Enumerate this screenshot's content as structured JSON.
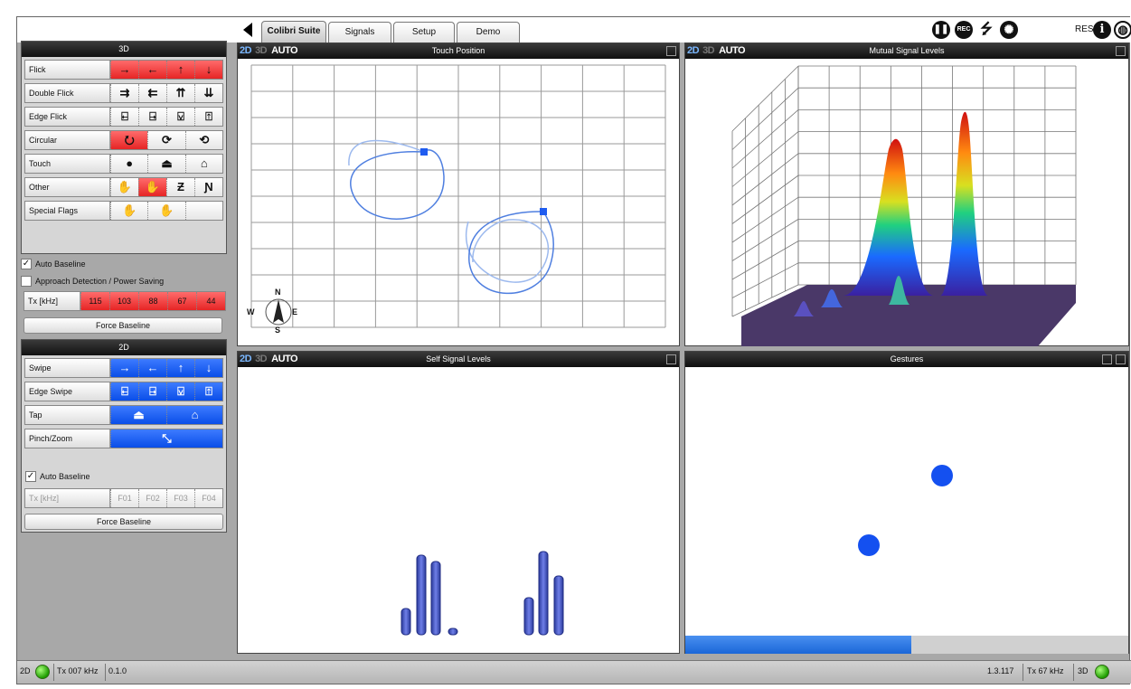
{
  "tabs": [
    "Colibri Suite",
    "Signals",
    "Setup",
    "Demo"
  ],
  "toolbar": {
    "pause_icon": "pause-icon",
    "rec_label": "REC",
    "usb_icon": "usb-icon",
    "settings_icon": "gear-icon",
    "reset_label": "RESET",
    "info_label": "i",
    "globe_icon": "globe-icon"
  },
  "panel3d": {
    "title": "3D",
    "rows": [
      {
        "label": "Flick",
        "cells": [
          "→",
          "←",
          "↑",
          "↓"
        ],
        "style": "red"
      },
      {
        "label": "Double Flick",
        "cells": [
          "⇉",
          "⇇",
          "⇈",
          "⇊"
        ]
      },
      {
        "label": "Edge Flick",
        "cells": [
          "⍇",
          "⍈",
          "⍌",
          "⍐"
        ]
      },
      {
        "label": "Circular",
        "cells": [
          "⭮",
          "⟳",
          "⟲"
        ],
        "active": [
          0
        ]
      },
      {
        "label": "Touch",
        "cells": [
          "●",
          "⏏",
          "⌂"
        ]
      },
      {
        "label": "Other",
        "cells": [
          "✋",
          "✋",
          "Ƶ",
          "Ɲ"
        ],
        "active": [
          1
        ]
      },
      {
        "label": "Special Flags",
        "cells": [
          "✋",
          "✋",
          " "
        ]
      }
    ],
    "auto_baseline": "Auto Baseline",
    "approach": "Approach Detection / Power Saving",
    "tx_label": "Tx [kHz]",
    "tx_values": [
      "115",
      "103",
      "88",
      "67",
      "44"
    ],
    "force_baseline": "Force Baseline"
  },
  "panel2d": {
    "title": "2D",
    "rows": [
      {
        "label": "Swipe",
        "cells": [
          "→",
          "←",
          "↑",
          "↓"
        ]
      },
      {
        "label": "Edge Swipe",
        "cells": [
          "⍇",
          "⍈",
          "⍌",
          "⍐"
        ]
      },
      {
        "label": "Tap",
        "cells": [
          "⏏",
          "⌂"
        ]
      },
      {
        "label": "Pinch/Zoom",
        "cells": [
          "⤡"
        ]
      }
    ],
    "auto_baseline": "Auto Baseline",
    "tx_label": "Tx [kHz]",
    "tx_values": [
      "F01",
      "F02",
      "F03",
      "F04"
    ],
    "force_baseline": "Force Baseline"
  },
  "views": {
    "touch": {
      "title": "Touch Position",
      "modes": [
        "2D",
        "3D",
        "AUTO"
      ],
      "compass": {
        "n": "N",
        "s": "S",
        "e": "E",
        "w": "W"
      }
    },
    "mutual": {
      "title": "Mutual Signal Levels",
      "modes": [
        "2D",
        "3D",
        "AUTO"
      ]
    },
    "self": {
      "title": "Self Signal Levels",
      "modes": [
        "2D",
        "3D",
        "AUTO"
      ],
      "bars": [
        0.29,
        0.88,
        0.81,
        0.07,
        0.41,
        0.92,
        0.65
      ]
    },
    "gestures": {
      "title": "Gestures",
      "progress": 0.51
    }
  },
  "statusbar": {
    "left_mode": "2D",
    "left_tx": "Tx 007 kHz",
    "version": "0.1.0",
    "right_version": "1.3.117",
    "right_tx": "Tx 67 kHz",
    "right_mode": "3D"
  }
}
